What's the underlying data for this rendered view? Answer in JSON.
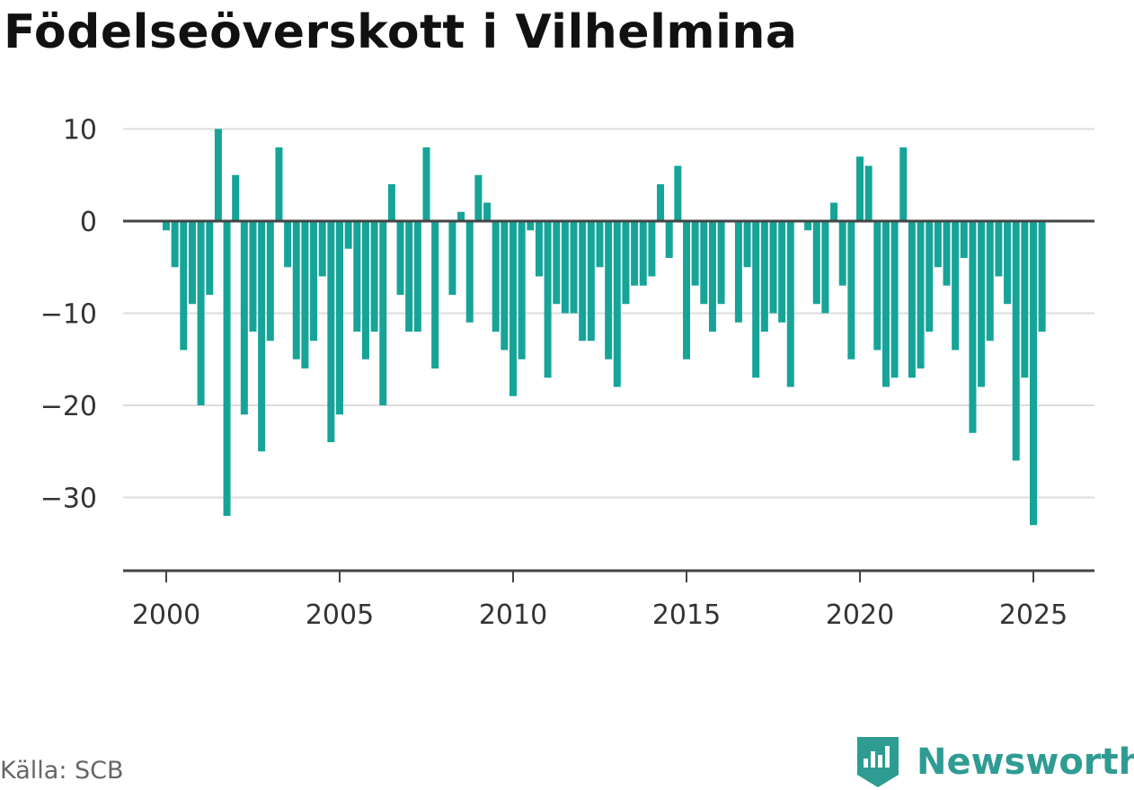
{
  "title": "Födelseöverskott i Vilhelmina",
  "source": "Källa: SCB",
  "brand": {
    "name": "Newsworthy",
    "icon": "newsworthy-logo-icon",
    "color": "#2f9c93"
  },
  "colors": {
    "bar": "#16a498",
    "zero_line": "#444444",
    "grid": "#dddddd",
    "axis": "#444444"
  },
  "chart_data": {
    "type": "bar",
    "x_unit": "quarter",
    "x_start": "2000 Q1",
    "x_ticks": [
      "2000",
      "2005",
      "2010",
      "2015",
      "2020",
      "2025"
    ],
    "y_ticks": [
      "10",
      "0",
      "−10",
      "−20",
      "−30"
    ],
    "ylim": [
      -38,
      10
    ],
    "grid": true,
    "values": [
      -1,
      -5,
      -14,
      -9,
      -20,
      -8,
      10,
      -32,
      5,
      -21,
      -12,
      -25,
      -13,
      8,
      -5,
      -15,
      -16,
      -13,
      -6,
      -24,
      -21,
      -3,
      -12,
      -15,
      -12,
      -20,
      4,
      -8,
      -12,
      -12,
      8,
      -16,
      0,
      -8,
      1,
      -11,
      5,
      2,
      -12,
      -14,
      -19,
      -15,
      -1,
      -6,
      -17,
      -9,
      -10,
      -10,
      -13,
      -13,
      -5,
      -15,
      -18,
      -9,
      -7,
      -7,
      -6,
      4,
      -4,
      6,
      -15,
      -7,
      -9,
      -12,
      -9,
      0,
      -11,
      -5,
      -17,
      -12,
      -10,
      -11,
      -18,
      0,
      -1,
      -9,
      -10,
      2,
      -7,
      -15,
      7,
      6,
      -14,
      -18,
      -17,
      8,
      -17,
      -16,
      -12,
      -5,
      -7,
      -14,
      -4,
      -23,
      -18,
      -13,
      -6,
      -9,
      -26,
      -17,
      -33,
      -12
    ]
  }
}
